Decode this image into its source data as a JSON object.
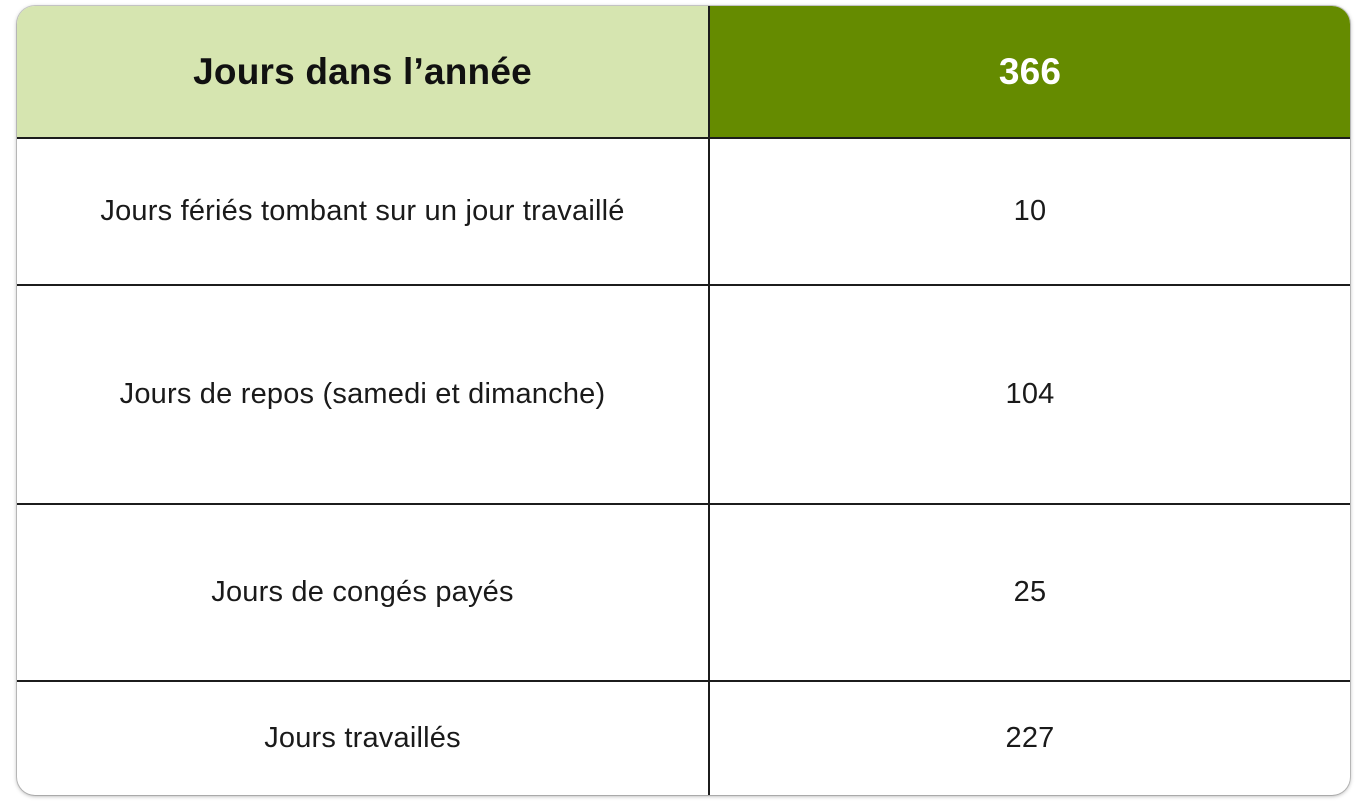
{
  "table": {
    "header": {
      "label": "Jours dans l’année",
      "value": "366"
    },
    "rows": [
      {
        "label": "Jours fériés tombant sur un jour travaillé",
        "value": "10"
      },
      {
        "label": "Jours de repos (samedi et dimanche)",
        "value": "104"
      },
      {
        "label": "Jours de congés payés",
        "value": "25"
      },
      {
        "label": "Jours travaillés",
        "value": "227"
      }
    ]
  },
  "colors": {
    "header_label_bg": "#d6e5b0",
    "header_value_bg": "#658b00",
    "border": "#1c1c1c"
  }
}
